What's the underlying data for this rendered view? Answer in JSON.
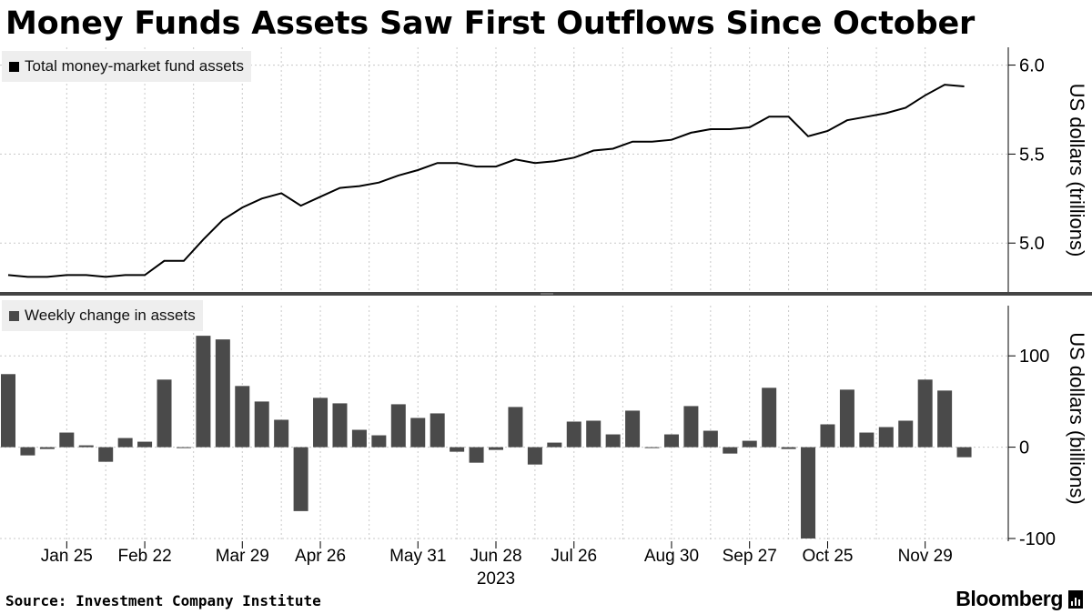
{
  "title": "Money Funds Assets Saw First Outflows Since October",
  "source": "Source: Investment Company Institute",
  "brand": "Bloomberg",
  "colors": {
    "line": "#000000",
    "bar": "#4a4a4a",
    "grid": "#c8c8c8",
    "legend_bg": "#eeeeee",
    "divider": "#444444"
  },
  "x_axis": {
    "tick_labels": [
      "Jan 25",
      "Feb 22",
      "Mar 29",
      "Apr 26",
      "May 31",
      "Jun 28",
      "Jul 26",
      "Aug 30",
      "Sep 27",
      "Oct 25",
      "Nov 29"
    ],
    "tick_dates": [
      "2023-01-25",
      "2023-02-22",
      "2023-03-29",
      "2023-04-26",
      "2023-05-31",
      "2023-06-28",
      "2023-07-26",
      "2023-08-30",
      "2023-09-27",
      "2023-10-25",
      "2023-11-29"
    ],
    "year_label": "2023",
    "range": [
      "2023-01-04",
      "2023-12-20"
    ]
  },
  "chart_data": [
    {
      "type": "line",
      "legend": "Total money-market fund assets",
      "ylabel": "US dollars (trillions)",
      "ylim": [
        4.72,
        6.1
      ],
      "yticks": [
        "5.0",
        "5.5",
        "6.0"
      ],
      "grid": true,
      "legend_position": "top-left",
      "x": [
        "2023-01-04",
        "2023-01-11",
        "2023-01-18",
        "2023-01-25",
        "2023-02-01",
        "2023-02-08",
        "2023-02-15",
        "2023-02-22",
        "2023-03-01",
        "2023-03-08",
        "2023-03-15",
        "2023-03-22",
        "2023-03-29",
        "2023-04-05",
        "2023-04-12",
        "2023-04-19",
        "2023-04-26",
        "2023-05-03",
        "2023-05-10",
        "2023-05-17",
        "2023-05-24",
        "2023-05-31",
        "2023-06-07",
        "2023-06-14",
        "2023-06-21",
        "2023-06-28",
        "2023-07-05",
        "2023-07-12",
        "2023-07-19",
        "2023-07-26",
        "2023-08-02",
        "2023-08-09",
        "2023-08-16",
        "2023-08-23",
        "2023-08-30",
        "2023-09-06",
        "2023-09-13",
        "2023-09-20",
        "2023-09-27",
        "2023-10-04",
        "2023-10-11",
        "2023-10-18",
        "2023-10-25",
        "2023-11-01",
        "2023-11-08",
        "2023-11-15",
        "2023-11-22",
        "2023-11-29",
        "2023-12-06",
        "2023-12-13"
      ],
      "values": [
        4.82,
        4.81,
        4.81,
        4.82,
        4.82,
        4.81,
        4.82,
        4.82,
        4.9,
        4.9,
        5.02,
        5.13,
        5.2,
        5.25,
        5.28,
        5.21,
        5.26,
        5.31,
        5.32,
        5.34,
        5.38,
        5.41,
        5.45,
        5.45,
        5.43,
        5.43,
        5.47,
        5.45,
        5.46,
        5.48,
        5.52,
        5.53,
        5.57,
        5.57,
        5.58,
        5.62,
        5.64,
        5.64,
        5.65,
        5.71,
        5.71,
        5.6,
        5.63,
        5.69,
        5.71,
        5.73,
        5.76,
        5.83,
        5.89,
        5.88
      ]
    },
    {
      "type": "bar",
      "legend": "Weekly change in assets",
      "ylabel": "US dollars (billions)",
      "ylim": [
        -103,
        155
      ],
      "yticks": [
        "100",
        "0",
        "-100"
      ],
      "grid": true,
      "legend_position": "top-left",
      "x": [
        "2023-01-04",
        "2023-01-11",
        "2023-01-18",
        "2023-01-25",
        "2023-02-01",
        "2023-02-08",
        "2023-02-15",
        "2023-02-22",
        "2023-03-01",
        "2023-03-08",
        "2023-03-15",
        "2023-03-22",
        "2023-03-29",
        "2023-04-05",
        "2023-04-12",
        "2023-04-19",
        "2023-04-26",
        "2023-05-03",
        "2023-05-10",
        "2023-05-17",
        "2023-05-24",
        "2023-05-31",
        "2023-06-07",
        "2023-06-14",
        "2023-06-21",
        "2023-06-28",
        "2023-07-05",
        "2023-07-12",
        "2023-07-19",
        "2023-07-26",
        "2023-08-02",
        "2023-08-09",
        "2023-08-16",
        "2023-08-23",
        "2023-08-30",
        "2023-09-06",
        "2023-09-13",
        "2023-09-20",
        "2023-09-27",
        "2023-10-04",
        "2023-10-11",
        "2023-10-18",
        "2023-10-25",
        "2023-11-01",
        "2023-11-08",
        "2023-11-15",
        "2023-11-22",
        "2023-11-29",
        "2023-12-06",
        "2023-12-13"
      ],
      "values": [
        80,
        -9,
        -2,
        16,
        2,
        -16,
        10,
        6,
        74,
        -1,
        122,
        118,
        67,
        50,
        30,
        -70,
        54,
        48,
        19,
        13,
        47,
        32,
        37,
        -5,
        -17,
        -3,
        44,
        -19,
        5,
        28,
        29,
        14,
        40,
        -1,
        14,
        45,
        18,
        -7,
        7,
        65,
        -2,
        -100,
        25,
        63,
        16,
        22,
        29,
        74,
        62,
        -11
      ]
    }
  ]
}
